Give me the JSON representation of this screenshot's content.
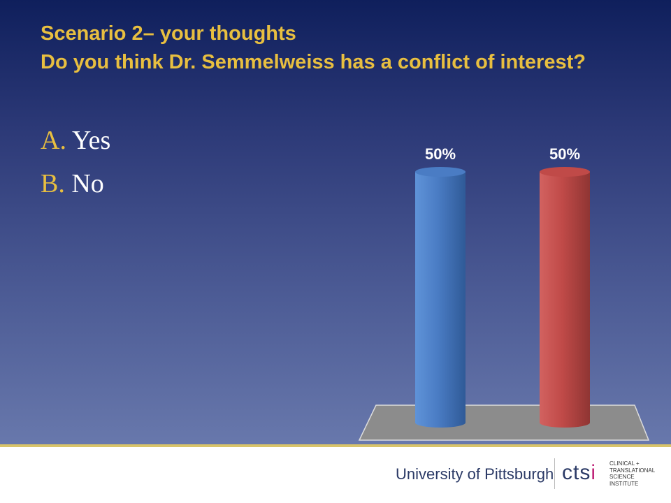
{
  "slide": {
    "title_line1": "Scenario 2– your thoughts",
    "title_line2": "Do you think Dr. Semmelweiss has a conflict of interest?",
    "options": [
      {
        "letter": "A.",
        "text": "Yes"
      },
      {
        "letter": "B.",
        "text": "No"
      }
    ]
  },
  "chart_data": {
    "type": "bar",
    "categories": [
      "Yes",
      "No"
    ],
    "values": [
      50,
      50
    ],
    "data_labels": [
      "50%",
      "50%"
    ],
    "ylim": [
      0,
      50
    ],
    "colors": [
      "#4a7cc4",
      "#c04a48"
    ],
    "floor_color": "#8c8c8c",
    "grid": false,
    "legend": "none"
  },
  "footer": {
    "university": "University of Pittsburgh",
    "ctsi": {
      "c": "c",
      "t": "t",
      "s": "s",
      "i": "i"
    },
    "institute_lines": [
      "CLINICAL +",
      "TRANSLATIONAL",
      "SCIENCE",
      "INSTITUTE"
    ]
  }
}
